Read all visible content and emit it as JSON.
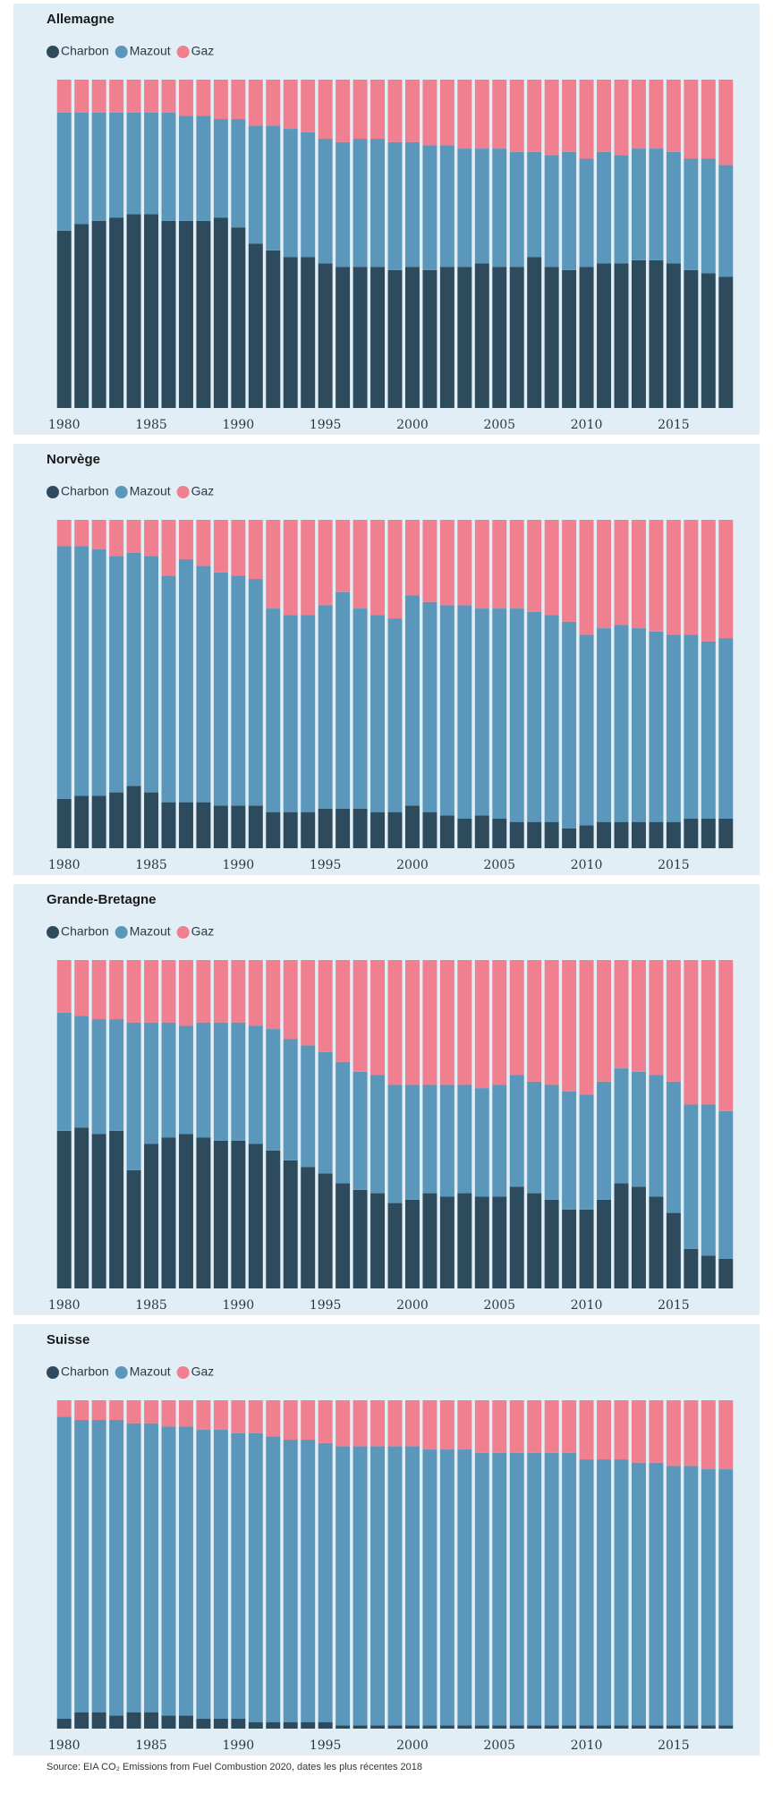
{
  "chart_data": [
    {
      "type": "bar",
      "stacked": true,
      "title": "Allemagne",
      "categories": [
        1980,
        1981,
        1982,
        1983,
        1984,
        1985,
        1986,
        1987,
        1988,
        1989,
        1990,
        1991,
        1992,
        1993,
        1994,
        1995,
        1996,
        1997,
        1998,
        1999,
        2000,
        2001,
        2002,
        2003,
        2004,
        2005,
        2006,
        2007,
        2008,
        2009,
        2010,
        2011,
        2012,
        2013,
        2014,
        2015,
        2016,
        2017,
        2018
      ],
      "xticks": [
        1980,
        1985,
        1990,
        1995,
        2000,
        2005,
        2010,
        2015
      ],
      "ylim": [
        0,
        100
      ],
      "series": [
        {
          "name": "Charbon",
          "color": "#2e4b5e",
          "values": [
            54,
            56,
            57,
            58,
            59,
            59,
            57,
            57,
            57,
            58,
            55,
            50,
            48,
            46,
            46,
            44,
            43,
            43,
            43,
            42,
            43,
            42,
            43,
            43,
            44,
            43,
            43,
            46,
            43,
            42,
            43,
            44,
            44,
            45,
            45,
            44,
            42,
            41,
            40
          ]
        },
        {
          "name": "Mazout",
          "color": "#5b96bb",
          "values": [
            36,
            34,
            33,
            32,
            31,
            31,
            33,
            32,
            32,
            30,
            33,
            36,
            38,
            39,
            38,
            38,
            38,
            39,
            39,
            39,
            38,
            38,
            37,
            36,
            35,
            36,
            35,
            32,
            34,
            36,
            33,
            34,
            33,
            34,
            34,
            34,
            34,
            35,
            34
          ]
        },
        {
          "name": "Gaz",
          "color": "#f0808f",
          "values": [
            10,
            10,
            10,
            10,
            10,
            10,
            10,
            11,
            11,
            12,
            12,
            14,
            14,
            15,
            16,
            18,
            19,
            18,
            18,
            19,
            19,
            20,
            20,
            21,
            21,
            21,
            22,
            22,
            23,
            22,
            24,
            22,
            23,
            21,
            21,
            22,
            24,
            24,
            26
          ]
        }
      ]
    },
    {
      "type": "bar",
      "stacked": true,
      "title": "Norvège",
      "categories": [
        1980,
        1981,
        1982,
        1983,
        1984,
        1985,
        1986,
        1987,
        1988,
        1989,
        1990,
        1991,
        1992,
        1993,
        1994,
        1995,
        1996,
        1997,
        1998,
        1999,
        2000,
        2001,
        2002,
        2003,
        2004,
        2005,
        2006,
        2007,
        2008,
        2009,
        2010,
        2011,
        2012,
        2013,
        2014,
        2015,
        2016,
        2017,
        2018
      ],
      "xticks": [
        1980,
        1985,
        1990,
        1995,
        2000,
        2005,
        2010,
        2015
      ],
      "ylim": [
        0,
        100
      ],
      "series": [
        {
          "name": "Charbon",
          "color": "#2e4b5e",
          "values": [
            15,
            16,
            16,
            17,
            19,
            17,
            14,
            14,
            14,
            13,
            13,
            13,
            11,
            11,
            11,
            12,
            12,
            12,
            11,
            11,
            13,
            11,
            10,
            9,
            10,
            9,
            8,
            8,
            8,
            6,
            7,
            8,
            8,
            8,
            8,
            8,
            9,
            9,
            9
          ]
        },
        {
          "name": "Mazout",
          "color": "#5b96bb",
          "values": [
            77,
            76,
            75,
            72,
            71,
            72,
            69,
            74,
            72,
            71,
            70,
            69,
            62,
            60,
            60,
            62,
            66,
            61,
            60,
            59,
            64,
            64,
            64,
            65,
            63,
            64,
            65,
            64,
            63,
            63,
            58,
            59,
            60,
            59,
            58,
            57,
            56,
            54,
            55
          ]
        },
        {
          "name": "Gaz",
          "color": "#f0808f",
          "values": [
            8,
            8,
            9,
            11,
            10,
            11,
            17,
            12,
            14,
            16,
            17,
            18,
            27,
            29,
            29,
            26,
            22,
            27,
            29,
            30,
            23,
            25,
            26,
            26,
            27,
            27,
            27,
            28,
            29,
            31,
            35,
            33,
            32,
            33,
            34,
            35,
            35,
            37,
            36
          ]
        }
      ]
    },
    {
      "type": "bar",
      "stacked": true,
      "title": "Grande-Bretagne",
      "categories": [
        1980,
        1981,
        1982,
        1983,
        1984,
        1985,
        1986,
        1987,
        1988,
        1989,
        1990,
        1991,
        1992,
        1993,
        1994,
        1995,
        1996,
        1997,
        1998,
        1999,
        2000,
        2001,
        2002,
        2003,
        2004,
        2005,
        2006,
        2007,
        2008,
        2009,
        2010,
        2011,
        2012,
        2013,
        2014,
        2015,
        2016,
        2017,
        2018
      ],
      "xticks": [
        1980,
        1985,
        1990,
        1995,
        2000,
        2005,
        2010,
        2015
      ],
      "ylim": [
        0,
        100
      ],
      "series": [
        {
          "name": "Charbon",
          "color": "#2e4b5e",
          "values": [
            48,
            49,
            47,
            48,
            36,
            44,
            46,
            47,
            46,
            45,
            45,
            44,
            42,
            39,
            37,
            35,
            32,
            30,
            29,
            26,
            27,
            29,
            28,
            29,
            28,
            28,
            31,
            29,
            27,
            24,
            24,
            27,
            32,
            31,
            28,
            23,
            12,
            10,
            9
          ]
        },
        {
          "name": "Mazout",
          "color": "#5b96bb",
          "values": [
            36,
            34,
            35,
            34,
            45,
            37,
            35,
            33,
            35,
            36,
            36,
            36,
            37,
            37,
            37,
            37,
            37,
            36,
            36,
            36,
            35,
            33,
            34,
            33,
            33,
            34,
            34,
            34,
            35,
            36,
            35,
            36,
            35,
            35,
            37,
            40,
            44,
            46,
            45
          ]
        },
        {
          "name": "Gaz",
          "color": "#f0808f",
          "values": [
            16,
            17,
            18,
            18,
            19,
            19,
            19,
            20,
            19,
            19,
            19,
            20,
            21,
            24,
            26,
            28,
            31,
            34,
            35,
            38,
            38,
            38,
            38,
            38,
            39,
            38,
            35,
            37,
            38,
            40,
            41,
            37,
            33,
            34,
            35,
            37,
            44,
            44,
            46
          ]
        }
      ]
    },
    {
      "type": "bar",
      "stacked": true,
      "title": "Suisse",
      "categories": [
        1980,
        1981,
        1982,
        1983,
        1984,
        1985,
        1986,
        1987,
        1988,
        1989,
        1990,
        1991,
        1992,
        1993,
        1994,
        1995,
        1996,
        1997,
        1998,
        1999,
        2000,
        2001,
        2002,
        2003,
        2004,
        2005,
        2006,
        2007,
        2008,
        2009,
        2010,
        2011,
        2012,
        2013,
        2014,
        2015,
        2016,
        2017,
        2018
      ],
      "xticks": [
        1980,
        1985,
        1990,
        1995,
        2000,
        2005,
        2010,
        2015
      ],
      "ylim": [
        0,
        100
      ],
      "series": [
        {
          "name": "Charbon",
          "color": "#2e4b5e",
          "values": [
            3,
            5,
            5,
            4,
            5,
            5,
            4,
            4,
            3,
            3,
            3,
            2,
            2,
            2,
            2,
            2,
            1,
            1,
            1,
            1,
            1,
            1,
            1,
            1,
            1,
            1,
            1,
            1,
            1,
            1,
            1,
            1,
            1,
            1,
            1,
            1,
            1,
            1,
            1
          ]
        },
        {
          "name": "Mazout",
          "color": "#5b96bb",
          "values": [
            92,
            89,
            89,
            90,
            88,
            88,
            88,
            88,
            88,
            88,
            87,
            88,
            87,
            86,
            86,
            85,
            85,
            85,
            85,
            85,
            85,
            84,
            84,
            84,
            83,
            83,
            83,
            83,
            83,
            83,
            81,
            81,
            81,
            80,
            80,
            79,
            79,
            78,
            78
          ]
        },
        {
          "name": "Gaz",
          "color": "#f0808f",
          "values": [
            5,
            6,
            6,
            6,
            7,
            7,
            8,
            8,
            9,
            9,
            10,
            10,
            11,
            12,
            12,
            13,
            14,
            14,
            14,
            14,
            14,
            15,
            15,
            15,
            16,
            16,
            16,
            16,
            16,
            16,
            18,
            18,
            18,
            19,
            19,
            20,
            20,
            21,
            21
          ]
        }
      ]
    }
  ],
  "source": "Source: EIA CO₂ Emissions from Fuel Combustion 2020, dates les plus récentes 2018"
}
